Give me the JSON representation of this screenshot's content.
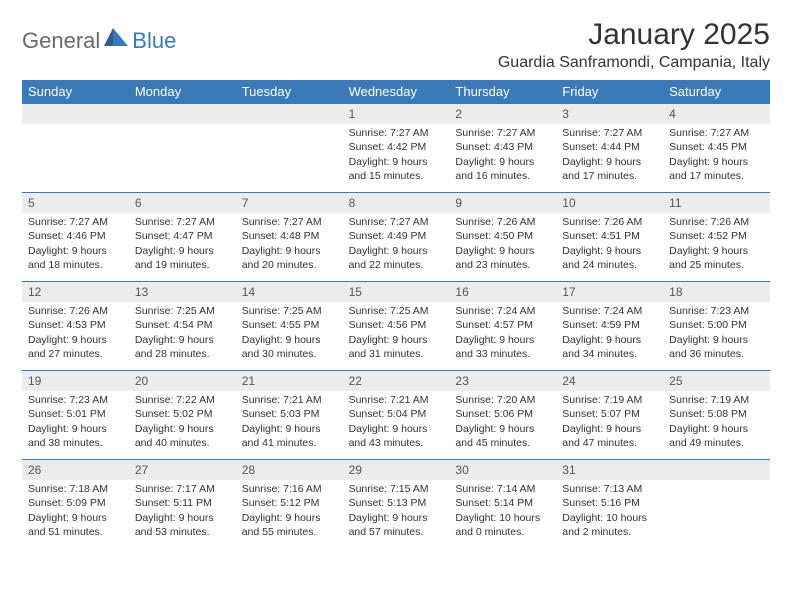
{
  "brand": {
    "general": "General",
    "blue": "Blue"
  },
  "title": "January 2025",
  "location": "Guardia Sanframondi, Campania, Italy",
  "colors": {
    "accent": "#3a7ab8",
    "header_text": "#ffffff",
    "daynum_bg": "#ececec",
    "body_text": "#333333",
    "logo_gray": "#6a6a6a"
  },
  "day_names": [
    "Sunday",
    "Monday",
    "Tuesday",
    "Wednesday",
    "Thursday",
    "Friday",
    "Saturday"
  ],
  "weeks": [
    [
      null,
      null,
      null,
      {
        "n": "1",
        "sr": "7:27 AM",
        "ss": "4:42 PM",
        "dl": "9 hours and 15 minutes."
      },
      {
        "n": "2",
        "sr": "7:27 AM",
        "ss": "4:43 PM",
        "dl": "9 hours and 16 minutes."
      },
      {
        "n": "3",
        "sr": "7:27 AM",
        "ss": "4:44 PM",
        "dl": "9 hours and 17 minutes."
      },
      {
        "n": "4",
        "sr": "7:27 AM",
        "ss": "4:45 PM",
        "dl": "9 hours and 17 minutes."
      }
    ],
    [
      {
        "n": "5",
        "sr": "7:27 AM",
        "ss": "4:46 PM",
        "dl": "9 hours and 18 minutes."
      },
      {
        "n": "6",
        "sr": "7:27 AM",
        "ss": "4:47 PM",
        "dl": "9 hours and 19 minutes."
      },
      {
        "n": "7",
        "sr": "7:27 AM",
        "ss": "4:48 PM",
        "dl": "9 hours and 20 minutes."
      },
      {
        "n": "8",
        "sr": "7:27 AM",
        "ss": "4:49 PM",
        "dl": "9 hours and 22 minutes."
      },
      {
        "n": "9",
        "sr": "7:26 AM",
        "ss": "4:50 PM",
        "dl": "9 hours and 23 minutes."
      },
      {
        "n": "10",
        "sr": "7:26 AM",
        "ss": "4:51 PM",
        "dl": "9 hours and 24 minutes."
      },
      {
        "n": "11",
        "sr": "7:26 AM",
        "ss": "4:52 PM",
        "dl": "9 hours and 25 minutes."
      }
    ],
    [
      {
        "n": "12",
        "sr": "7:26 AM",
        "ss": "4:53 PM",
        "dl": "9 hours and 27 minutes."
      },
      {
        "n": "13",
        "sr": "7:25 AM",
        "ss": "4:54 PM",
        "dl": "9 hours and 28 minutes."
      },
      {
        "n": "14",
        "sr": "7:25 AM",
        "ss": "4:55 PM",
        "dl": "9 hours and 30 minutes."
      },
      {
        "n": "15",
        "sr": "7:25 AM",
        "ss": "4:56 PM",
        "dl": "9 hours and 31 minutes."
      },
      {
        "n": "16",
        "sr": "7:24 AM",
        "ss": "4:57 PM",
        "dl": "9 hours and 33 minutes."
      },
      {
        "n": "17",
        "sr": "7:24 AM",
        "ss": "4:59 PM",
        "dl": "9 hours and 34 minutes."
      },
      {
        "n": "18",
        "sr": "7:23 AM",
        "ss": "5:00 PM",
        "dl": "9 hours and 36 minutes."
      }
    ],
    [
      {
        "n": "19",
        "sr": "7:23 AM",
        "ss": "5:01 PM",
        "dl": "9 hours and 38 minutes."
      },
      {
        "n": "20",
        "sr": "7:22 AM",
        "ss": "5:02 PM",
        "dl": "9 hours and 40 minutes."
      },
      {
        "n": "21",
        "sr": "7:21 AM",
        "ss": "5:03 PM",
        "dl": "9 hours and 41 minutes."
      },
      {
        "n": "22",
        "sr": "7:21 AM",
        "ss": "5:04 PM",
        "dl": "9 hours and 43 minutes."
      },
      {
        "n": "23",
        "sr": "7:20 AM",
        "ss": "5:06 PM",
        "dl": "9 hours and 45 minutes."
      },
      {
        "n": "24",
        "sr": "7:19 AM",
        "ss": "5:07 PM",
        "dl": "9 hours and 47 minutes."
      },
      {
        "n": "25",
        "sr": "7:19 AM",
        "ss": "5:08 PM",
        "dl": "9 hours and 49 minutes."
      }
    ],
    [
      {
        "n": "26",
        "sr": "7:18 AM",
        "ss": "5:09 PM",
        "dl": "9 hours and 51 minutes."
      },
      {
        "n": "27",
        "sr": "7:17 AM",
        "ss": "5:11 PM",
        "dl": "9 hours and 53 minutes."
      },
      {
        "n": "28",
        "sr": "7:16 AM",
        "ss": "5:12 PM",
        "dl": "9 hours and 55 minutes."
      },
      {
        "n": "29",
        "sr": "7:15 AM",
        "ss": "5:13 PM",
        "dl": "9 hours and 57 minutes."
      },
      {
        "n": "30",
        "sr": "7:14 AM",
        "ss": "5:14 PM",
        "dl": "10 hours and 0 minutes."
      },
      {
        "n": "31",
        "sr": "7:13 AM",
        "ss": "5:16 PM",
        "dl": "10 hours and 2 minutes."
      },
      null
    ]
  ],
  "labels": {
    "sunrise": "Sunrise:",
    "sunset": "Sunset:",
    "daylight": "Daylight:"
  }
}
